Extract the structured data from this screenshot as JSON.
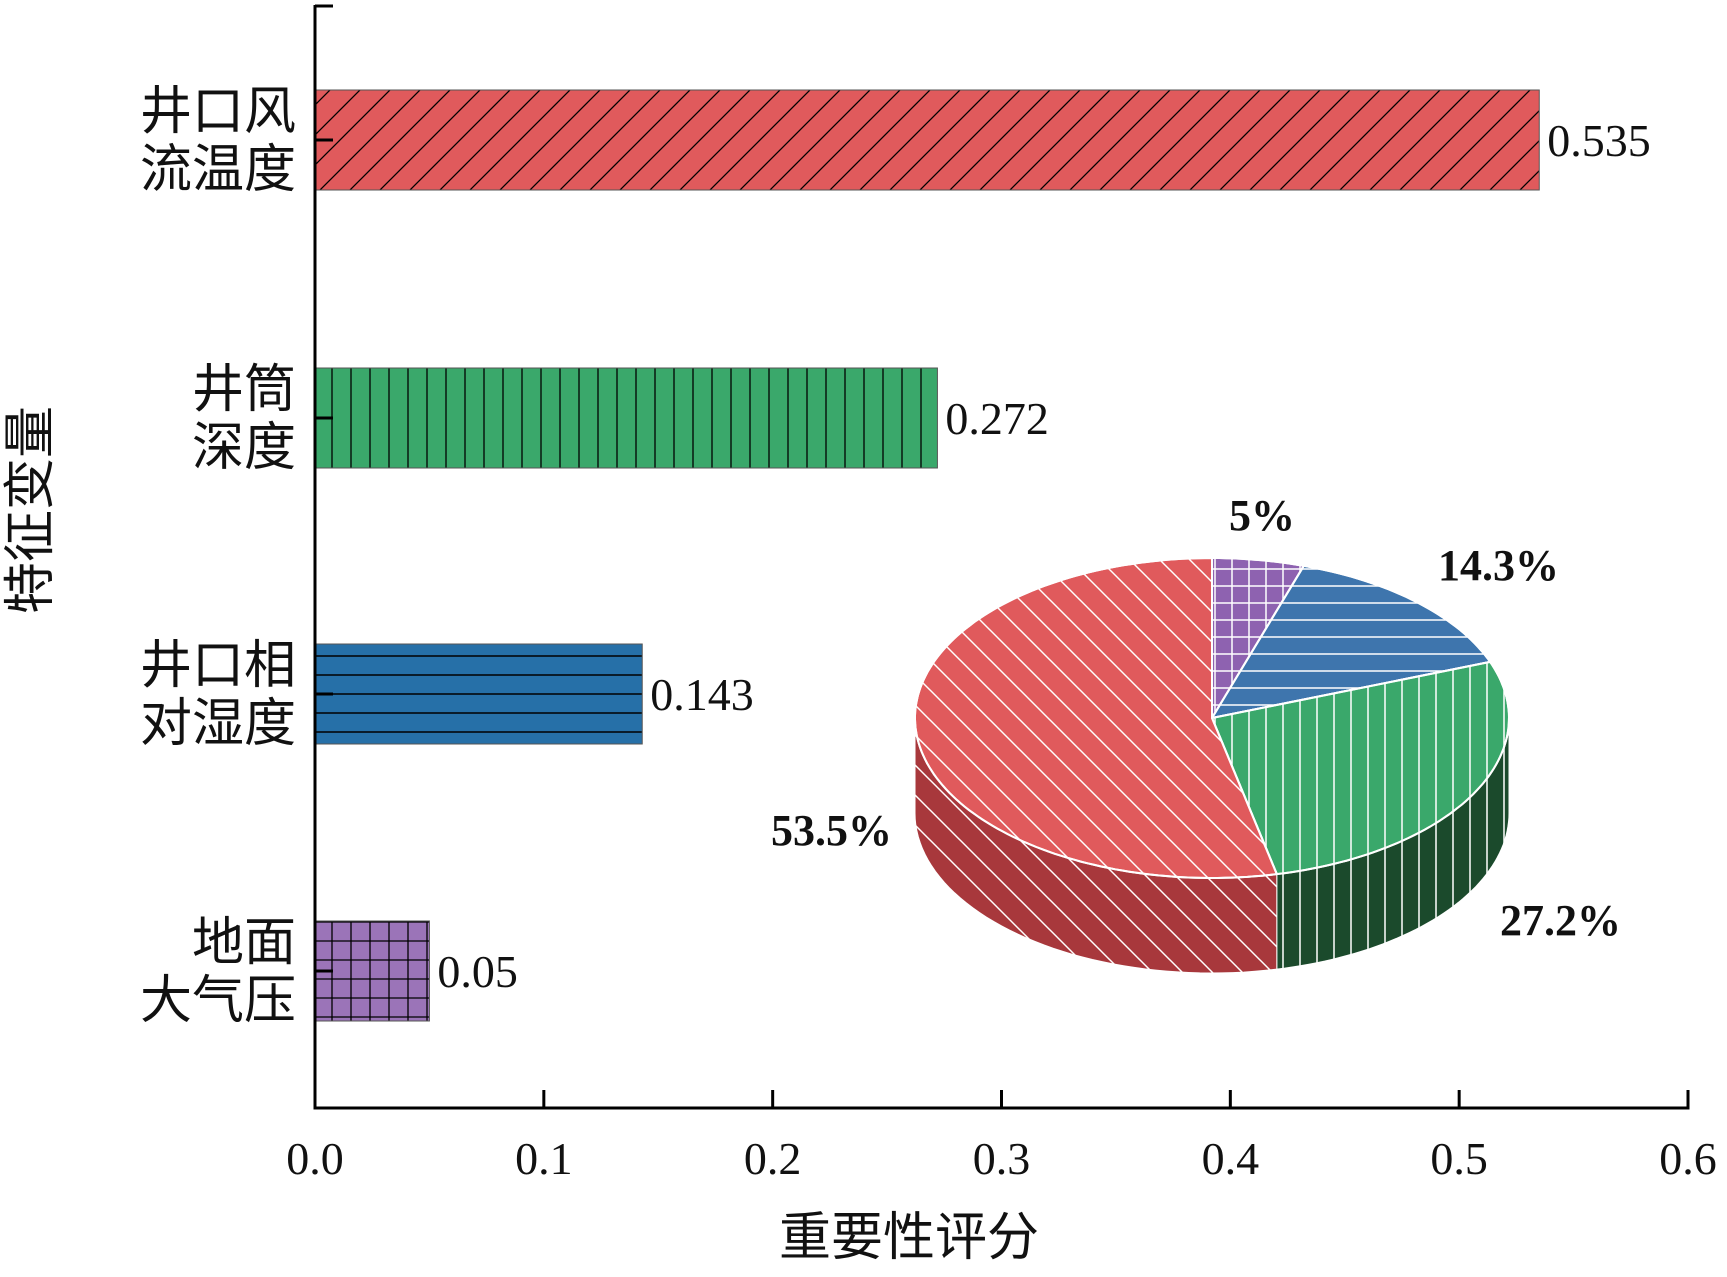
{
  "chart_data": [
    {
      "type": "bar",
      "orientation": "horizontal",
      "categories": [
        "井口风流温度",
        "井筒深度",
        "井口相对湿度",
        "地面大气压"
      ],
      "category_lines": [
        [
          "井口风",
          "流温度"
        ],
        [
          "井筒",
          "深度"
        ],
        [
          "井口相",
          "对湿度"
        ],
        [
          "地面",
          "大气压"
        ]
      ],
      "values": [
        0.535,
        0.272,
        0.143,
        0.05
      ],
      "value_labels": [
        "0.535",
        "0.272",
        "0.143",
        "0.05"
      ],
      "colors": [
        "#e05a5c",
        "#3aa86b",
        "#2670a8",
        "#9b74b8"
      ],
      "patterns": [
        "diagonal",
        "vertical",
        "horizontal",
        "grid"
      ],
      "xlabel": "重要性评分",
      "ylabel": "特征变量",
      "xlim": [
        0,
        0.6
      ],
      "xticks": [
        0.0,
        0.1,
        0.2,
        0.3,
        0.4,
        0.5,
        0.6
      ],
      "xtick_labels": [
        "0.0",
        "0.1",
        "0.2",
        "0.3",
        "0.4",
        "0.5",
        "0.6"
      ],
      "grid": false
    },
    {
      "type": "pie",
      "style": "3d",
      "labels": [
        "5%",
        "14.3%",
        "27.2%",
        "53.5%"
      ],
      "values": [
        5,
        14.3,
        27.2,
        53.5
      ],
      "colors": [
        "#8e62b0",
        "#3e75ad",
        "#3aa86b",
        "#e05a5c"
      ],
      "side_colors": [
        "#5c3f76",
        "#2a4e76",
        "#1b4a2c",
        "#a8383c"
      ],
      "patterns": [
        "grid",
        "horizontal",
        "vertical",
        "diagonal"
      ]
    }
  ]
}
